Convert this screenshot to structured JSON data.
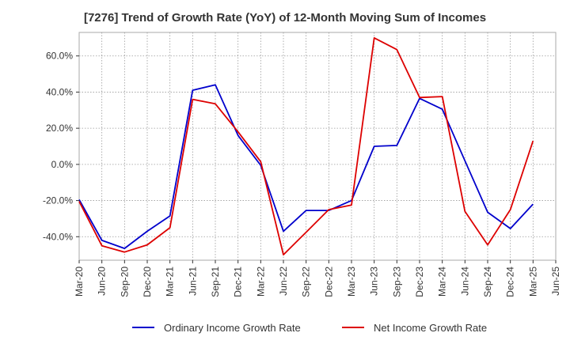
{
  "chart_data": {
    "type": "line",
    "title": "[7276]  Trend of Growth Rate (YoY) of 12-Month Moving Sum of Incomes",
    "xlabel": "",
    "ylabel": "",
    "ylim": [
      -53,
      73
    ],
    "y_ticks": [
      -40,
      -20,
      0,
      20,
      40,
      60
    ],
    "y_tick_labels": [
      "-40.0%",
      "-20.0%",
      "0.0%",
      "20.0%",
      "40.0%",
      "60.0%"
    ],
    "x": [
      "Mar-20",
      "Jun-20",
      "Sep-20",
      "Dec-20",
      "Mar-21",
      "Jun-21",
      "Sep-21",
      "Dec-21",
      "Mar-22",
      "Jun-22",
      "Sep-22",
      "Dec-22",
      "Mar-23",
      "Jun-23",
      "Sep-23",
      "Dec-23",
      "Mar-24",
      "Jun-24",
      "Sep-24",
      "Dec-24",
      "Mar-25",
      "Jun-25"
    ],
    "grid": true,
    "legend_position": "bottom",
    "series": [
      {
        "name": "Ordinary Income Growth Rate",
        "color": "#0000cc",
        "values": [
          -19.5,
          -42.0,
          -46.5,
          -37.0,
          -28.5,
          41.0,
          44.0,
          16.0,
          -0.5,
          -37.0,
          -25.5,
          -25.5,
          -20.0,
          10.0,
          10.5,
          36.5,
          30.5,
          2.0,
          -26.5,
          -35.5,
          -22.0,
          null
        ]
      },
      {
        "name": "Net Income Growth Rate",
        "color": "#dd0000",
        "values": [
          -20.5,
          -45.0,
          -48.5,
          -44.5,
          -35.0,
          36.0,
          33.5,
          18.0,
          1.5,
          -50.0,
          -37.5,
          -25.0,
          -22.5,
          70.0,
          63.5,
          37.0,
          37.5,
          -26.0,
          -44.5,
          -25.0,
          13.0,
          null
        ]
      }
    ]
  }
}
